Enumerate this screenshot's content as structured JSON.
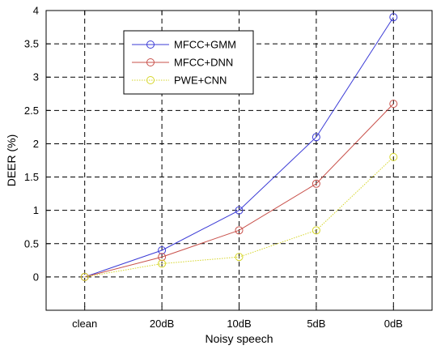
{
  "chart_data": {
    "type": "line",
    "title": "",
    "xlabel": "Noisy speech",
    "ylabel": "DEER (%)",
    "categories": [
      "clean",
      "20dB",
      "10dB",
      "5dB",
      "0dB"
    ],
    "ylim": [
      -0.5,
      4
    ],
    "yticks": [
      "0",
      "0.5",
      "1",
      "1.5",
      "2",
      "2.5",
      "3",
      "3.5",
      "4"
    ],
    "grid": true,
    "legend_position": "top-left",
    "series": [
      {
        "name": "MFCC+GMM",
        "color": "#3b3bd6",
        "line_style": "solid",
        "marker": "circle",
        "values": [
          0,
          0.4,
          1.0,
          2.1,
          3.9
        ]
      },
      {
        "name": "MFCC+DNN",
        "color": "#c8504a",
        "line_style": "solid",
        "marker": "circle",
        "values": [
          0,
          0.3,
          0.7,
          1.4,
          2.6
        ]
      },
      {
        "name": "PWE+CNN",
        "color": "#d6d62a",
        "line_style": "dotted",
        "marker": "circle",
        "values": [
          0,
          0.2,
          0.3,
          0.7,
          1.8
        ]
      }
    ]
  }
}
